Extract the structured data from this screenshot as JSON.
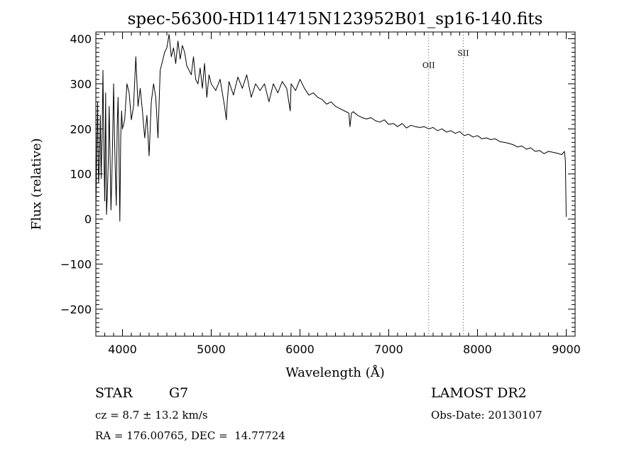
{
  "chart_data": {
    "type": "line",
    "title": "spec-56300-HD114715N123952B01_sp16-140.fits",
    "xlabel": "Wavelength (Å)",
    "ylabel": "Flux (relative)",
    "xlim": [
      3700,
      9100
    ],
    "ylim": [
      -260,
      415
    ],
    "xticks": [
      4000,
      5000,
      6000,
      7000,
      8000,
      9000
    ],
    "yticks": [
      -200,
      -100,
      0,
      100,
      200,
      300,
      400
    ],
    "grid": false,
    "line_color": "#000000",
    "series": [
      {
        "x": [
          3700,
          3710,
          3720,
          3730,
          3740,
          3750,
          3760,
          3770,
          3780,
          3790,
          3800,
          3810,
          3820,
          3830,
          3840,
          3850,
          3860,
          3870,
          3880,
          3890,
          3900,
          3910,
          3920,
          3930,
          3940,
          3950,
          3960,
          3970,
          3980,
          3990,
          4000,
          4025,
          4050,
          4075,
          4100,
          4125,
          4150,
          4175,
          4200,
          4225,
          4250,
          4275,
          4300,
          4325,
          4350,
          4375,
          4400,
          4425,
          4450,
          4475,
          4500,
          4525,
          4550,
          4575,
          4600,
          4625,
          4650,
          4675,
          4700,
          4725,
          4750,
          4775,
          4800,
          4825,
          4850,
          4875,
          4900,
          4925,
          4950,
          4975,
          5000,
          5050,
          5100,
          5150,
          5170,
          5180,
          5200,
          5250,
          5300,
          5350,
          5400,
          5450,
          5500,
          5550,
          5600,
          5650,
          5700,
          5750,
          5800,
          5850,
          5890,
          5900,
          5950,
          6000,
          6050,
          6100,
          6150,
          6200,
          6250,
          6300,
          6350,
          6400,
          6450,
          6500,
          6550,
          6563,
          6580,
          6600,
          6650,
          6700,
          6750,
          6800,
          6850,
          6900,
          6950,
          7000,
          7050,
          7100,
          7150,
          7200,
          7250,
          7300,
          7350,
          7400,
          7450,
          7500,
          7550,
          7600,
          7650,
          7700,
          7750,
          7800,
          7850,
          7900,
          7950,
          8000,
          8050,
          8100,
          8150,
          8200,
          8250,
          8300,
          8350,
          8400,
          8450,
          8500,
          8550,
          8600,
          8650,
          8700,
          8750,
          8800,
          8850,
          8900,
          8950,
          8980,
          8990,
          9000
        ],
        "y": [
          20,
          150,
          260,
          80,
          120,
          230,
          90,
          180,
          330,
          150,
          40,
          280,
          10,
          60,
          130,
          250,
          140,
          20,
          90,
          190,
          300,
          180,
          100,
          30,
          200,
          270,
          160,
          -5,
          180,
          240,
          200,
          220,
          300,
          280,
          220,
          250,
          360,
          250,
          290,
          240,
          180,
          230,
          140,
          260,
          300,
          270,
          180,
          330,
          350,
          370,
          380,
          410,
          360,
          380,
          345,
          395,
          355,
          385,
          370,
          340,
          330,
          320,
          360,
          310,
          300,
          335,
          290,
          345,
          270,
          320,
          300,
          285,
          310,
          250,
          220,
          260,
          305,
          275,
          315,
          290,
          320,
          270,
          300,
          285,
          300,
          260,
          300,
          280,
          305,
          290,
          240,
          300,
          285,
          310,
          290,
          275,
          280,
          270,
          265,
          255,
          260,
          250,
          245,
          240,
          235,
          205,
          235,
          238,
          230,
          225,
          222,
          225,
          218,
          215,
          220,
          210,
          212,
          205,
          212,
          202,
          208,
          205,
          203,
          205,
          200,
          203,
          196,
          200,
          193,
          196,
          190,
          194,
          185,
          188,
          182,
          185,
          178,
          180,
          176,
          178,
          172,
          170,
          168,
          165,
          160,
          162,
          155,
          158,
          150,
          152,
          145,
          150,
          148,
          146,
          143,
          150,
          130,
          5
        ]
      }
    ],
    "annotations": [
      {
        "label": "OII",
        "x": 7450,
        "label_y": 335
      },
      {
        "label": "SII",
        "x": 7840,
        "label_y": 362
      }
    ]
  },
  "info": {
    "object_class": "STAR",
    "subclass": "G7",
    "cz": "cz = 8.7 ± 13.2 km/s",
    "coords": "RA = 176.00765, DEC =  14.77724",
    "survey": "LAMOST DR2",
    "obs_date": "Obs-Date: 20130107"
  }
}
